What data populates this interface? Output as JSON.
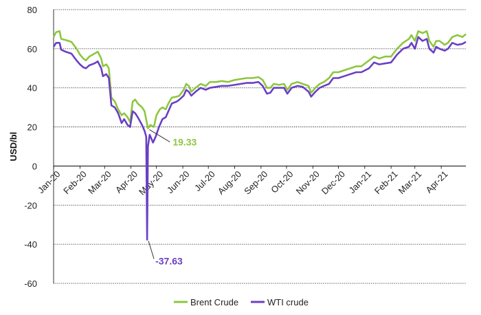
{
  "chart_data": {
    "type": "line",
    "title": "",
    "xlabel": "",
    "ylabel": "USD/bl",
    "ylim": [
      -60,
      80
    ],
    "yticks": [
      -60,
      -40,
      -20,
      0,
      20,
      40,
      60,
      80
    ],
    "grid": "horizontal",
    "legend_position": "bottom",
    "x_tick_labels": [
      "Jan-20",
      "Feb-20",
      "Mar-20",
      "Apr-20",
      "May-20",
      "Jun-20",
      "Jul-20",
      "Aug-20",
      "Sep-20",
      "Oct-20",
      "Nov-20",
      "Dec-20",
      "Jan-21",
      "Feb-21",
      "Mar-21",
      "Apr-21"
    ],
    "x_tick_dates": [
      "2020-01-01",
      "2020-02-01",
      "2020-03-01",
      "2020-04-01",
      "2020-05-01",
      "2020-06-01",
      "2020-07-01",
      "2020-08-01",
      "2020-09-01",
      "2020-10-01",
      "2020-11-01",
      "2020-12-01",
      "2021-01-01",
      "2021-02-01",
      "2021-03-01",
      "2021-04-01"
    ],
    "xlim": [
      "2020-01-01",
      "2021-04-30"
    ],
    "series": [
      {
        "name": "Brent Crude",
        "color": "#8dc63f",
        "points": [
          [
            "2020-01-01",
            66
          ],
          [
            "2020-01-04",
            68.5
          ],
          [
            "2020-01-08",
            69
          ],
          [
            "2020-01-10",
            65
          ],
          [
            "2020-01-15",
            64.5
          ],
          [
            "2020-01-22",
            63.5
          ],
          [
            "2020-01-28",
            60
          ],
          [
            "2020-02-01",
            57
          ],
          [
            "2020-02-05",
            55
          ],
          [
            "2020-02-08",
            54
          ],
          [
            "2020-02-12",
            56
          ],
          [
            "2020-02-18",
            57.5
          ],
          [
            "2020-02-22",
            58.5
          ],
          [
            "2020-02-26",
            55
          ],
          [
            "2020-02-28",
            51
          ],
          [
            "2020-03-03",
            52
          ],
          [
            "2020-03-06",
            50
          ],
          [
            "2020-03-09",
            35
          ],
          [
            "2020-03-13",
            33
          ],
          [
            "2020-03-17",
            29
          ],
          [
            "2020-03-21",
            26
          ],
          [
            "2020-03-24",
            27
          ],
          [
            "2020-03-28",
            25
          ],
          [
            "2020-03-31",
            22.5
          ],
          [
            "2020-04-03",
            33
          ],
          [
            "2020-04-06",
            34
          ],
          [
            "2020-04-09",
            32
          ],
          [
            "2020-04-14",
            30
          ],
          [
            "2020-04-17",
            28
          ],
          [
            "2020-04-21",
            19.33
          ],
          [
            "2020-04-24",
            21
          ],
          [
            "2020-04-28",
            20
          ],
          [
            "2020-05-01",
            26
          ],
          [
            "2020-05-05",
            29
          ],
          [
            "2020-05-08",
            30
          ],
          [
            "2020-05-12",
            29
          ],
          [
            "2020-05-15",
            32
          ],
          [
            "2020-05-19",
            35
          ],
          [
            "2020-05-25",
            35.5
          ],
          [
            "2020-05-28",
            36
          ],
          [
            "2020-06-02",
            39
          ],
          [
            "2020-06-05",
            42
          ],
          [
            "2020-06-08",
            41
          ],
          [
            "2020-06-11",
            38
          ],
          [
            "2020-06-16",
            40
          ],
          [
            "2020-06-22",
            42
          ],
          [
            "2020-06-28",
            41
          ],
          [
            "2020-07-03",
            43
          ],
          [
            "2020-07-10",
            43
          ],
          [
            "2020-07-17",
            43.5
          ],
          [
            "2020-07-24",
            43
          ],
          [
            "2020-08-01",
            44
          ],
          [
            "2020-08-08",
            44.5
          ],
          [
            "2020-08-15",
            45
          ],
          [
            "2020-08-22",
            45
          ],
          [
            "2020-08-29",
            45.5
          ],
          [
            "2020-09-03",
            44
          ],
          [
            "2020-09-08",
            40
          ],
          [
            "2020-09-12",
            40
          ],
          [
            "2020-09-16",
            42
          ],
          [
            "2020-09-22",
            41.5
          ],
          [
            "2020-09-28",
            42
          ],
          [
            "2020-10-02",
            39
          ],
          [
            "2020-10-07",
            42
          ],
          [
            "2020-10-14",
            43
          ],
          [
            "2020-10-20",
            42
          ],
          [
            "2020-10-27",
            41
          ],
          [
            "2020-10-30",
            37.5
          ],
          [
            "2020-11-04",
            40
          ],
          [
            "2020-11-09",
            42
          ],
          [
            "2020-11-14",
            43
          ],
          [
            "2020-11-20",
            45
          ],
          [
            "2020-11-25",
            48
          ],
          [
            "2020-12-01",
            48
          ],
          [
            "2020-12-08",
            49
          ],
          [
            "2020-12-15",
            50
          ],
          [
            "2020-12-22",
            51
          ],
          [
            "2020-12-28",
            51
          ],
          [
            "2021-01-06",
            54
          ],
          [
            "2021-01-12",
            56
          ],
          [
            "2021-01-18",
            55
          ],
          [
            "2021-01-25",
            56
          ],
          [
            "2021-02-01",
            56
          ],
          [
            "2021-02-08",
            60
          ],
          [
            "2021-02-15",
            63
          ],
          [
            "2021-02-22",
            65
          ],
          [
            "2021-02-25",
            67
          ],
          [
            "2021-03-01",
            64
          ],
          [
            "2021-03-05",
            69
          ],
          [
            "2021-03-10",
            68
          ],
          [
            "2021-03-15",
            69
          ],
          [
            "2021-03-18",
            64
          ],
          [
            "2021-03-23",
            61
          ],
          [
            "2021-03-26",
            64
          ],
          [
            "2021-03-30",
            64
          ],
          [
            "2021-04-05",
            62
          ],
          [
            "2021-04-09",
            63
          ],
          [
            "2021-04-14",
            66
          ],
          [
            "2021-04-20",
            67
          ],
          [
            "2021-04-26",
            66
          ],
          [
            "2021-04-30",
            67.5
          ]
        ]
      },
      {
        "name": "WTI crude",
        "color": "#6a3fc4",
        "points": [
          [
            "2020-01-01",
            61
          ],
          [
            "2020-01-04",
            63
          ],
          [
            "2020-01-08",
            63
          ],
          [
            "2020-01-10",
            59.5
          ],
          [
            "2020-01-15",
            58.5
          ],
          [
            "2020-01-22",
            57.5
          ],
          [
            "2020-01-28",
            54
          ],
          [
            "2020-02-01",
            52
          ],
          [
            "2020-02-05",
            50.5
          ],
          [
            "2020-02-08",
            50
          ],
          [
            "2020-02-12",
            51.5
          ],
          [
            "2020-02-18",
            52.5
          ],
          [
            "2020-02-22",
            53.5
          ],
          [
            "2020-02-26",
            50
          ],
          [
            "2020-02-28",
            46
          ],
          [
            "2020-03-03",
            47
          ],
          [
            "2020-03-06",
            45
          ],
          [
            "2020-03-09",
            31
          ],
          [
            "2020-03-13",
            30
          ],
          [
            "2020-03-17",
            27
          ],
          [
            "2020-03-21",
            22
          ],
          [
            "2020-03-24",
            24
          ],
          [
            "2020-03-28",
            21
          ],
          [
            "2020-03-31",
            20
          ],
          [
            "2020-04-03",
            28
          ],
          [
            "2020-04-06",
            27
          ],
          [
            "2020-04-09",
            25
          ],
          [
            "2020-04-14",
            21
          ],
          [
            "2020-04-17",
            18
          ],
          [
            "2020-04-19",
            15
          ],
          [
            "2020-04-20",
            -37.63
          ],
          [
            "2020-04-21",
            10
          ],
          [
            "2020-04-23",
            16
          ],
          [
            "2020-04-27",
            12
          ],
          [
            "2020-04-30",
            15
          ],
          [
            "2020-05-04",
            20
          ],
          [
            "2020-05-08",
            24
          ],
          [
            "2020-05-12",
            25
          ],
          [
            "2020-05-15",
            28
          ],
          [
            "2020-05-19",
            32
          ],
          [
            "2020-05-25",
            33
          ],
          [
            "2020-05-28",
            34
          ],
          [
            "2020-06-02",
            36
          ],
          [
            "2020-06-05",
            39
          ],
          [
            "2020-06-08",
            38
          ],
          [
            "2020-06-11",
            36
          ],
          [
            "2020-06-16",
            38
          ],
          [
            "2020-06-22",
            40
          ],
          [
            "2020-06-28",
            39
          ],
          [
            "2020-07-03",
            40
          ],
          [
            "2020-07-10",
            40.5
          ],
          [
            "2020-07-17",
            41
          ],
          [
            "2020-07-24",
            41
          ],
          [
            "2020-08-01",
            41.5
          ],
          [
            "2020-08-08",
            42
          ],
          [
            "2020-08-15",
            42.5
          ],
          [
            "2020-08-22",
            42.5
          ],
          [
            "2020-08-29",
            43
          ],
          [
            "2020-09-03",
            41
          ],
          [
            "2020-09-08",
            37
          ],
          [
            "2020-09-12",
            37.5
          ],
          [
            "2020-09-16",
            40
          ],
          [
            "2020-09-22",
            40
          ],
          [
            "2020-09-28",
            40
          ],
          [
            "2020-10-02",
            37
          ],
          [
            "2020-10-07",
            40
          ],
          [
            "2020-10-14",
            41
          ],
          [
            "2020-10-20",
            40.5
          ],
          [
            "2020-10-27",
            38
          ],
          [
            "2020-10-30",
            35.5
          ],
          [
            "2020-11-04",
            38
          ],
          [
            "2020-11-09",
            40
          ],
          [
            "2020-11-14",
            41
          ],
          [
            "2020-11-20",
            42
          ],
          [
            "2020-11-25",
            45
          ],
          [
            "2020-12-01",
            45
          ],
          [
            "2020-12-08",
            46
          ],
          [
            "2020-12-15",
            47
          ],
          [
            "2020-12-22",
            48
          ],
          [
            "2020-12-28",
            48
          ],
          [
            "2021-01-06",
            50
          ],
          [
            "2021-01-12",
            53
          ],
          [
            "2021-01-18",
            52
          ],
          [
            "2021-01-25",
            52.5
          ],
          [
            "2021-02-01",
            53
          ],
          [
            "2021-02-08",
            57
          ],
          [
            "2021-02-15",
            60
          ],
          [
            "2021-02-22",
            61
          ],
          [
            "2021-02-25",
            63
          ],
          [
            "2021-03-01",
            60
          ],
          [
            "2021-03-05",
            66
          ],
          [
            "2021-03-10",
            64
          ],
          [
            "2021-03-15",
            65
          ],
          [
            "2021-03-18",
            60
          ],
          [
            "2021-03-23",
            58
          ],
          [
            "2021-03-26",
            61
          ],
          [
            "2021-03-30",
            60
          ],
          [
            "2021-04-05",
            59
          ],
          [
            "2021-04-09",
            60
          ],
          [
            "2021-04-14",
            63
          ],
          [
            "2021-04-20",
            62
          ],
          [
            "2021-04-26",
            62.5
          ],
          [
            "2021-04-30",
            63.5
          ]
        ]
      }
    ],
    "annotations": [
      {
        "text": "19.33",
        "series": "Brent Crude",
        "x": "2020-04-21",
        "y": 19.33,
        "color": "#8dc63f"
      },
      {
        "text": "-37.63",
        "series": "WTI crude",
        "x": "2020-04-20",
        "y": -37.63,
        "color": "#6a3fc4"
      }
    ]
  }
}
